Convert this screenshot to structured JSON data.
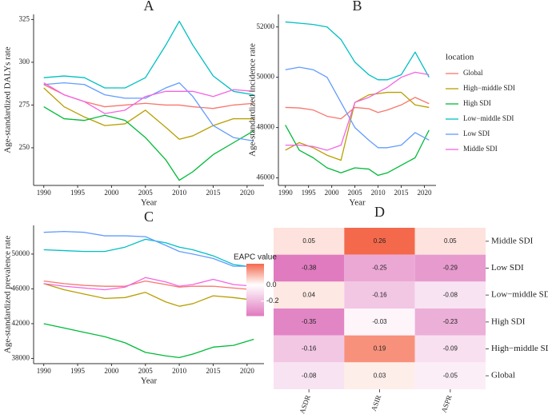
{
  "chart_data": [
    {
      "type": "line",
      "title": "A",
      "x_label": "Year",
      "y_label": "Age-standardized DALYs rate",
      "x": [
        1990,
        1993,
        1996,
        1999,
        2002,
        2005,
        2008,
        2010,
        2012,
        2015,
        2018,
        2021
      ],
      "xlim": [
        1988.5,
        2022.5
      ],
      "xticks": [
        1990,
        1995,
        2000,
        2005,
        2010,
        2015,
        2020
      ],
      "ylim": [
        228,
        328
      ],
      "yticks": [
        250,
        275,
        300,
        325
      ],
      "series": [
        {
          "name": "Global",
          "color": "#F8766D",
          "values": [
            287,
            281,
            277,
            274,
            275,
            276,
            275,
            275,
            274,
            273,
            275,
            276
          ]
        },
        {
          "name": "High−middle SDI",
          "color": "#B79F00",
          "values": [
            285,
            274,
            268,
            263,
            264,
            272,
            262,
            255,
            257,
            263,
            267,
            267
          ]
        },
        {
          "name": "High SDI",
          "color": "#00BA38",
          "values": [
            274,
            267,
            266,
            269,
            266,
            256,
            243,
            231,
            236,
            246,
            253,
            260
          ]
        },
        {
          "name": "Low−middle SDI",
          "color": "#00BFC4",
          "values": [
            291,
            292,
            291,
            285,
            285,
            291,
            310,
            324,
            310,
            292,
            283,
            281
          ]
        },
        {
          "name": "Low SDI",
          "color": "#619CFF",
          "values": [
            287,
            288,
            287,
            281,
            279,
            279,
            285,
            288,
            280,
            263,
            256,
            254
          ]
        },
        {
          "name": "Middle SDI",
          "color": "#F564E3",
          "values": [
            288,
            281,
            277,
            270,
            272,
            280,
            283,
            283,
            283,
            280,
            284,
            283
          ]
        }
      ]
    },
    {
      "type": "line",
      "title": "B",
      "x_label": "Year",
      "y_label": "Age-standardized incidence rate",
      "legend_title": "location",
      "x": [
        1990,
        1993,
        1996,
        1999,
        2002,
        2005,
        2008,
        2010,
        2012,
        2015,
        2018,
        2021
      ],
      "xlim": [
        1988.5,
        2022.5
      ],
      "xticks": [
        1990,
        1995,
        2000,
        2005,
        2010,
        2015,
        2020
      ],
      "ylim": [
        45700,
        52500
      ],
      "yticks": [
        46000,
        48000,
        50000,
        52000
      ],
      "series": [
        {
          "name": "Global",
          "color": "#F8766D",
          "values": [
            48800,
            48780,
            48700,
            48450,
            48350,
            48800,
            48750,
            48600,
            48700,
            48900,
            49200,
            48950
          ]
        },
        {
          "name": "High−middle SDI",
          "color": "#B79F00",
          "values": [
            47100,
            47400,
            47200,
            46900,
            46700,
            49000,
            49300,
            49350,
            49400,
            49400,
            48900,
            48800
          ]
        },
        {
          "name": "High SDI",
          "color": "#00BA38",
          "values": [
            48100,
            47100,
            46800,
            46400,
            46200,
            46400,
            46350,
            46100,
            46200,
            46500,
            46800,
            47900
          ]
        },
        {
          "name": "Low−middle SDI",
          "color": "#00BFC4",
          "values": [
            52200,
            52150,
            52100,
            52000,
            51500,
            50600,
            50100,
            49900,
            49900,
            50100,
            51000,
            50000
          ]
        },
        {
          "name": "Low SDI",
          "color": "#619CFF",
          "values": [
            50300,
            50400,
            50300,
            50000,
            49000,
            48000,
            47500,
            47200,
            47200,
            47300,
            47800,
            47500
          ]
        },
        {
          "name": "Middle SDI",
          "color": "#F564E3",
          "values": [
            47300,
            47300,
            47250,
            47100,
            47300,
            49000,
            49200,
            49400,
            49600,
            50000,
            50200,
            50100
          ]
        }
      ]
    },
    {
      "type": "line",
      "title": "C",
      "x_label": "Year",
      "y_label": "Age-standardized prevalence rate",
      "x": [
        1990,
        1993,
        1996,
        1999,
        2002,
        2005,
        2008,
        2010,
        2012,
        2015,
        2018,
        2021
      ],
      "xlim": [
        1988.5,
        2022.5
      ],
      "xticks": [
        1990,
        1995,
        2000,
        2005,
        2010,
        2015,
        2020
      ],
      "ylim": [
        37400,
        53300
      ],
      "yticks": [
        38000,
        42000,
        46000,
        50000
      ],
      "series": [
        {
          "name": "Global",
          "color": "#F8766D",
          "values": [
            46900,
            46600,
            46400,
            46300,
            46300,
            46900,
            46500,
            46200,
            46300,
            46300,
            46100,
            45900
          ]
        },
        {
          "name": "High−middle SDI",
          "color": "#B79F00",
          "values": [
            46600,
            45900,
            45400,
            44900,
            45000,
            45600,
            44500,
            44000,
            44300,
            45200,
            45000,
            44700
          ]
        },
        {
          "name": "High SDI",
          "color": "#00BA38",
          "values": [
            42000,
            41500,
            41000,
            40500,
            39800,
            38700,
            38300,
            38100,
            38500,
            39300,
            39500,
            40200
          ]
        },
        {
          "name": "Low−middle SDI",
          "color": "#00BFC4",
          "values": [
            50500,
            50400,
            50300,
            50300,
            50800,
            51700,
            51300,
            50800,
            50500,
            49800,
            48800,
            48500
          ]
        },
        {
          "name": "Low SDI",
          "color": "#619CFF",
          "values": [
            52500,
            52600,
            52500,
            52100,
            52100,
            52000,
            51000,
            50300,
            50000,
            49500,
            48600,
            48600
          ]
        },
        {
          "name": "Middle SDI",
          "color": "#F564E3",
          "values": [
            46600,
            46300,
            46100,
            45900,
            46200,
            47300,
            46800,
            46300,
            46500,
            47100,
            46500,
            46300
          ]
        }
      ]
    },
    {
      "type": "heatmap",
      "title": "D",
      "colorbar_title": "EAPC value",
      "rows": [
        "Middle SDI",
        "Low SDI",
        "Low−middle SDI",
        "High SDI",
        "High−middle SDI",
        "Global"
      ],
      "columns": [
        "ASDR",
        "ASIR",
        "ASPR"
      ],
      "values": [
        [
          0.05,
          0.26,
          0.05
        ],
        [
          -0.38,
          -0.25,
          -0.29
        ],
        [
          0.04,
          -0.16,
          -0.08
        ],
        [
          -0.35,
          -0.03,
          -0.23
        ],
        [
          -0.16,
          0.19,
          -0.09
        ],
        [
          -0.08,
          0.03,
          -0.05
        ]
      ],
      "colorbar_ticks": [
        {
          "value": 0,
          "label": "0.0"
        },
        -0.2
      ],
      "low_color": "#e07bbf",
      "mid_color": "#ffffff",
      "high_color": "#f4694c"
    }
  ]
}
